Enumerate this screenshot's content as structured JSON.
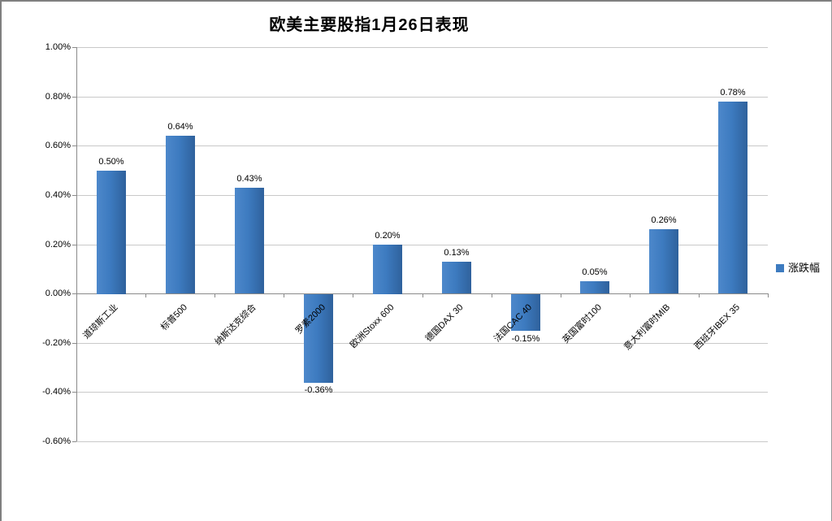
{
  "chart_data": {
    "type": "bar",
    "title": "欧美主要股指1月26日表现",
    "categories": [
      "道琼斯工业",
      "标普500",
      "纳斯达克综合",
      "罗素2000",
      "欧洲Stoxx 600",
      "德国DAX 30",
      "法国CAC 40",
      "英国富时100",
      "意大利富时MIB",
      "西班牙IBEX 35"
    ],
    "series": [
      {
        "name": "涨跌幅",
        "values": [
          0.5,
          0.64,
          0.43,
          -0.36,
          0.2,
          0.13,
          -0.15,
          0.05,
          0.26,
          0.78
        ],
        "labels": [
          "0.50%",
          "0.64%",
          "0.43%",
          "-0.36%",
          "0.20%",
          "0.13%",
          "-0.15%",
          "0.05%",
          "0.26%",
          "0.78%"
        ]
      }
    ],
    "xlabel": "",
    "ylabel": "",
    "ylim": [
      -0.6,
      1.0
    ],
    "ytick_step": 0.2,
    "ytick_labels": [
      "1.00%",
      "0.80%",
      "0.60%",
      "0.40%",
      "0.20%",
      "0.00%",
      "-0.20%",
      "-0.40%",
      "-0.60%"
    ],
    "grid": true,
    "legend_position": "right",
    "bar_color": "#3d7bc0",
    "gridline_color": "#c9c9c9",
    "axis_color": "#8a8a8a"
  }
}
